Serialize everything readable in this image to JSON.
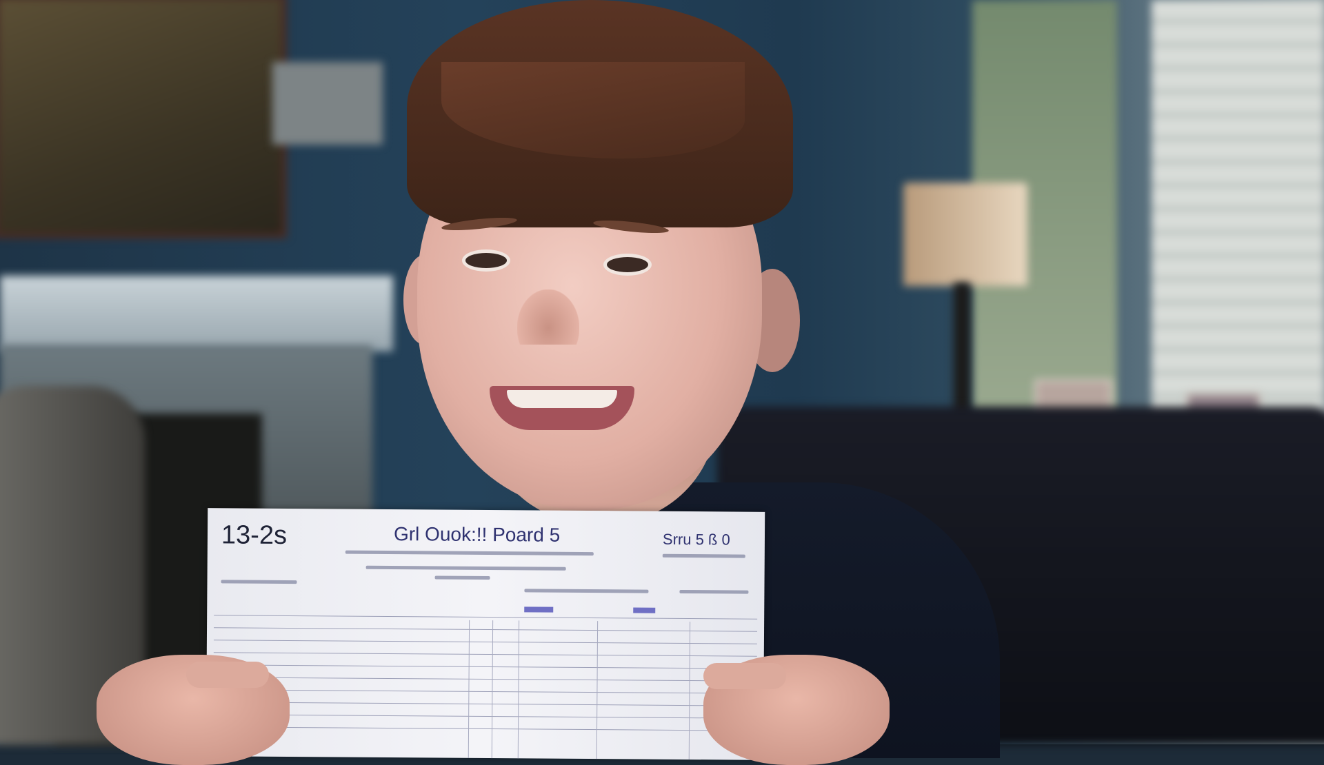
{
  "scene": {
    "description_colors": {
      "wall": "#24425a",
      "shirt": "#141b2a",
      "hair": "#4a2b1d",
      "paper": "#f4f4f8",
      "ink": "#2f3270"
    }
  },
  "card": {
    "code": "13-2s",
    "title": "Grl Ouok:!! Poard 5",
    "right_header": "Srru 5 ß 0"
  }
}
